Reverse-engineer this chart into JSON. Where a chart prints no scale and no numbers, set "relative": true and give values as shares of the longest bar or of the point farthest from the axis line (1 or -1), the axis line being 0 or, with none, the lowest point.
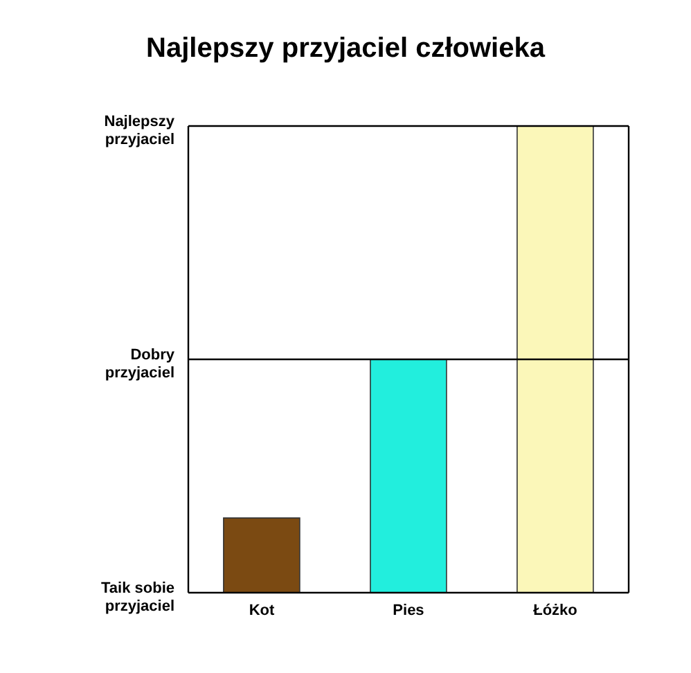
{
  "chart_data": {
    "type": "bar",
    "title": "Najlepszy przyjaciel człowieka",
    "categories": [
      "Kot",
      "Pies",
      "Łóżko"
    ],
    "values": [
      0.16,
      0.5,
      1
    ],
    "colors": [
      "#7b4a12",
      "#22eedd",
      "#fbf7b9"
    ],
    "relative": true,
    "ref_lines": [
      {
        "axis": "y",
        "value": 0.5,
        "label": "Dobry przyjaciel"
      }
    ],
    "annotations": [
      "Najlepszy przyjaciel",
      "Taik sobie przyjaciel"
    ]
  }
}
